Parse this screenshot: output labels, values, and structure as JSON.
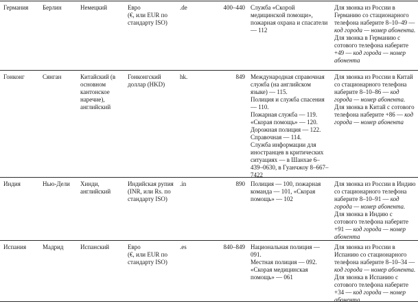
{
  "table": {
    "rows": [
      {
        "country": "Германия",
        "capital": "Берлин",
        "language": "Немецкий",
        "currency": [
          "Евро",
          "(€, или EUR по стандарту ISO)"
        ],
        "domain": ".de",
        "code": "400–440",
        "services": [
          "Служба «Скорой медицинской помощи», пожарная охрана и спасатели — 112"
        ],
        "dialing": [
          {
            "normal": "Для звонка из России в Германию со стационарного телефона наберите 8–10–49 — ",
            "italic": "код города — номер абонента."
          },
          {
            "normal": "Для звонка в Германию с сотового телефона наберите +49 — ",
            "italic": "код города — номер абонента"
          }
        ]
      },
      {
        "country": "Гонконг",
        "capital": "Сянган",
        "language": "Китайский (в основном кантонское наречие), английский",
        "currency": [
          "Гонконгский доллар (HKD)"
        ],
        "domain": "hk.",
        "code": "849",
        "services": [
          "Международная справочная служба (на английском языке) — 115.",
          "Полиция и служба спасения — 110.",
          "Пожарная служба — 119.",
          "«Скорая помощь» — 120.",
          "Дорожная полиция — 122.",
          "Справочная — 114.",
          "Служба информации для иностранцев в критических ситуациях — в Шанхае 6–439–0630, в Гуанчжоу 8–667–7422"
        ],
        "dialing": [
          {
            "normal": "Для звонка из России в Китай со стационарного телефона наберите 8–10–86 — ",
            "italic": "код города — номер абонента."
          },
          {
            "normal": "Для звонка в Китай с сотового телефона наберите +86 — ",
            "italic": "код города — номер абонента"
          }
        ]
      },
      {
        "country": "Индия",
        "capital": "Нью-Дели",
        "language": "Хинди, английский",
        "currency": [
          "Индийская рупия (INR, или Rs. по стандарту ISO)"
        ],
        "domain": ".in",
        "code": "890",
        "services": [
          "Полиция — 100, пожарная команда — 101, «Скорая помощь» — 102"
        ],
        "dialing": [
          {
            "normal": "Для звонка из России в Индию со стационарного телефона наберите 8–10–91 — ",
            "italic": "код города — номер абонента."
          },
          {
            "normal": "Для звонка в Индию с сотового телефона наберите +91 — ",
            "italic": "код города — номер абонента"
          }
        ]
      },
      {
        "country": "Испания",
        "capital": "Мадрид",
        "language": "Испанский",
        "currency": [
          "Евро",
          "(€, или EUR по стандарту ISO)"
        ],
        "domain": ".es",
        "code": "840–849",
        "services": [
          "Национальная полиция — 091.",
          "Местная полиция — 092.",
          "«Скорая медицинская помощь» — 061"
        ],
        "dialing": [
          {
            "normal": "Для звонка из России в Испанию со стационарного телефона наберите 8–10–34 — ",
            "italic": "код города — номер абонента."
          },
          {
            "normal": "Для звонка в Испанию с сотового телефона наберите +34 — ",
            "italic": "код города — номер абонента"
          }
        ]
      }
    ]
  }
}
